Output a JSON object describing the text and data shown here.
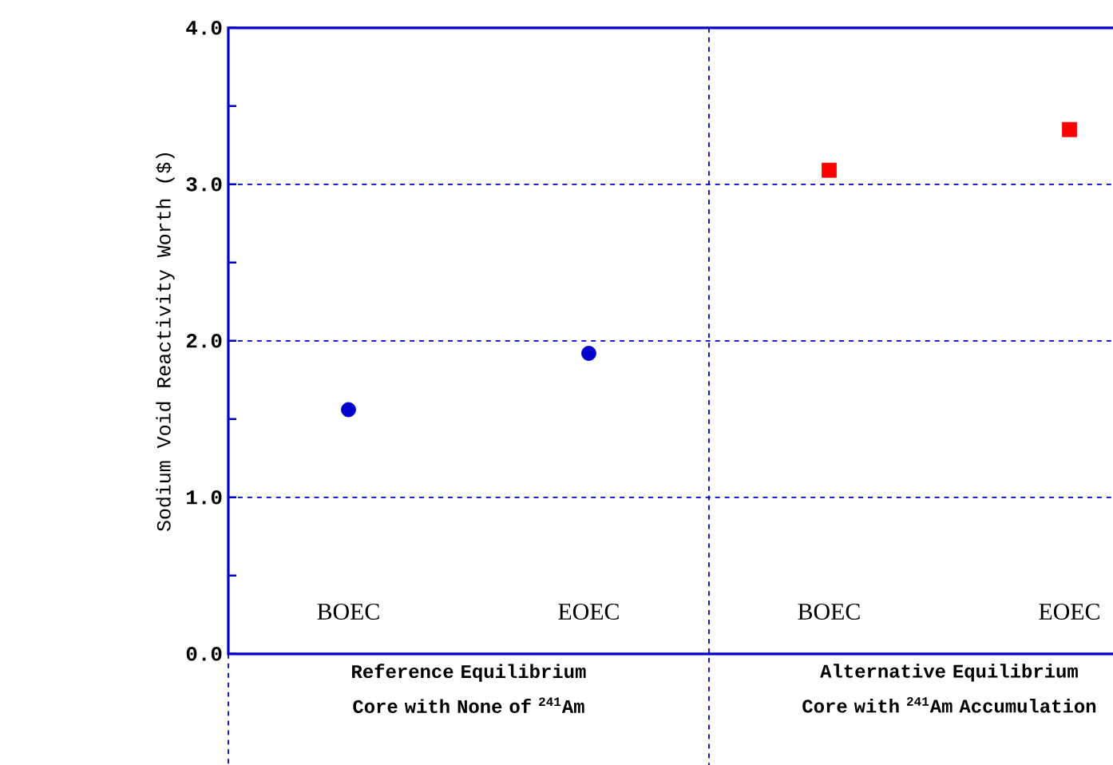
{
  "chart_data": {
    "type": "scatter",
    "ylabel": "Sodium Void Reactivity Worth ($)",
    "categories": [
      "BOEC",
      "EOEC",
      "BOEC",
      "EOEC"
    ],
    "series": [
      {
        "color": "#0000cc",
        "marker": "circle",
        "values": [
          1.56,
          1.92,
          null,
          null
        ]
      },
      {
        "color": "#ff0000",
        "marker": "square",
        "values": [
          null,
          null,
          3.09,
          3.35
        ]
      }
    ],
    "ylim": [
      0,
      4
    ],
    "yticks": [
      {
        "value": 0,
        "label": "0.0"
      },
      {
        "value": 1,
        "label": "1.0"
      },
      {
        "value": 2,
        "label": "2.0"
      },
      {
        "value": 3,
        "label": "3.0"
      },
      {
        "value": 4,
        "label": "4.0"
      }
    ],
    "grid": "y",
    "annotations": [
      "Reference Equilibrium Core with None of $^{241}$Am",
      "Alternative Equilibrium Core with $^{241}$Am Accumulation"
    ]
  }
}
